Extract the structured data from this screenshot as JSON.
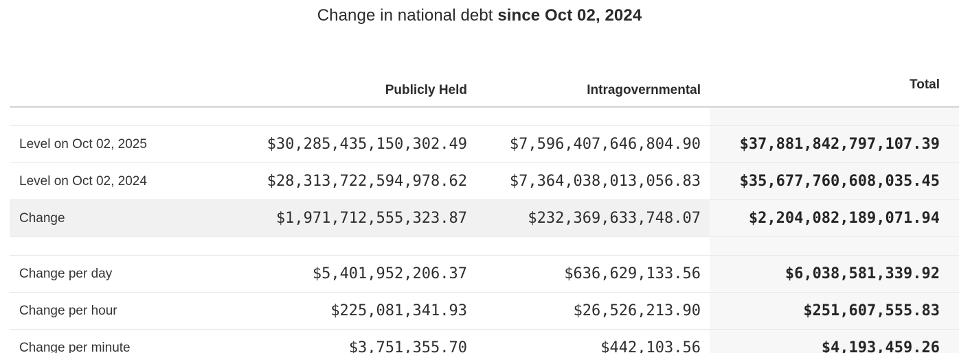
{
  "title": {
    "prefix": "Change in national debt",
    "emphasis": "since Oct 02, 2024"
  },
  "table": {
    "columns": {
      "label": "",
      "publicly_held": "Publicly Held",
      "intragovernmental": "Intragovernmental",
      "total": "Total"
    },
    "rows": [
      {
        "label": "Level on Oct 02, 2025",
        "publicly_held": "$30,285,435,150,302.49",
        "intragovernmental": "$7,596,407,646,804.90",
        "total": "$37,881,842,797,107.39"
      },
      {
        "label": "Level on Oct 02, 2024",
        "publicly_held": "$28,313,722,594,978.62",
        "intragovernmental": "$7,364,038,013,056.83",
        "total": "$35,677,760,608,035.45"
      },
      {
        "label": "Change",
        "publicly_held": "$1,971,712,555,323.87",
        "intragovernmental": "$232,369,633,748.07",
        "total": "$2,204,082,189,071.94"
      },
      {
        "label": "Change per day",
        "publicly_held": "$5,401,952,206.37",
        "intragovernmental": "$636,629,133.56",
        "total": "$6,038,581,339.92"
      },
      {
        "label": "Change per hour",
        "publicly_held": "$225,081,341.93",
        "intragovernmental": "$26,526,213.90",
        "total": "$251,607,555.83"
      },
      {
        "label": "Change per minute",
        "publicly_held": "$3,751,355.70",
        "intragovernmental": "$442,103.56",
        "total": "$4,193,459.26"
      }
    ]
  },
  "colors": {
    "total_column_bg": "#f7f7f7",
    "change_row_bg": "#f1f1f1",
    "header_border": "#d2d2d2",
    "row_border": "#e8e8e8",
    "text": "#2e2e2e"
  }
}
